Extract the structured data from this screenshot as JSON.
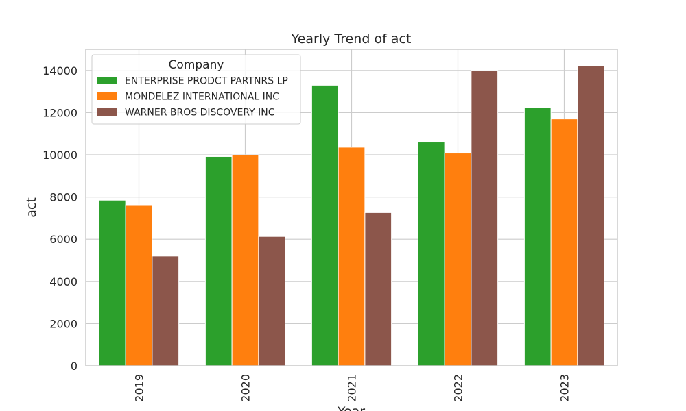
{
  "chart_data": {
    "type": "bar",
    "title": "Yearly Trend of act",
    "xlabel": "Year",
    "ylabel": "act",
    "categories": [
      "2019",
      "2020",
      "2021",
      "2022",
      "2023"
    ],
    "ylim": [
      0,
      15000
    ],
    "yticks": [
      0,
      2000,
      4000,
      6000,
      8000,
      10000,
      12000,
      14000
    ],
    "grid": true,
    "legend": {
      "title": "Company",
      "placement": "top-left"
    },
    "series": [
      {
        "name": "ENTERPRISE PRODCT PARTNRS LP",
        "color": "#2ca02c",
        "values": [
          7850,
          9920,
          13300,
          10600,
          12250
        ]
      },
      {
        "name": "MONDELEZ INTERNATIONAL INC",
        "color": "#ff7f0e",
        "values": [
          7630,
          9990,
          10360,
          10080,
          11700
        ]
      },
      {
        "name": "WARNER BROS DISCOVERY INC",
        "color": "#8c564b",
        "values": [
          5200,
          6130,
          7260,
          14000,
          14230
        ]
      }
    ]
  }
}
